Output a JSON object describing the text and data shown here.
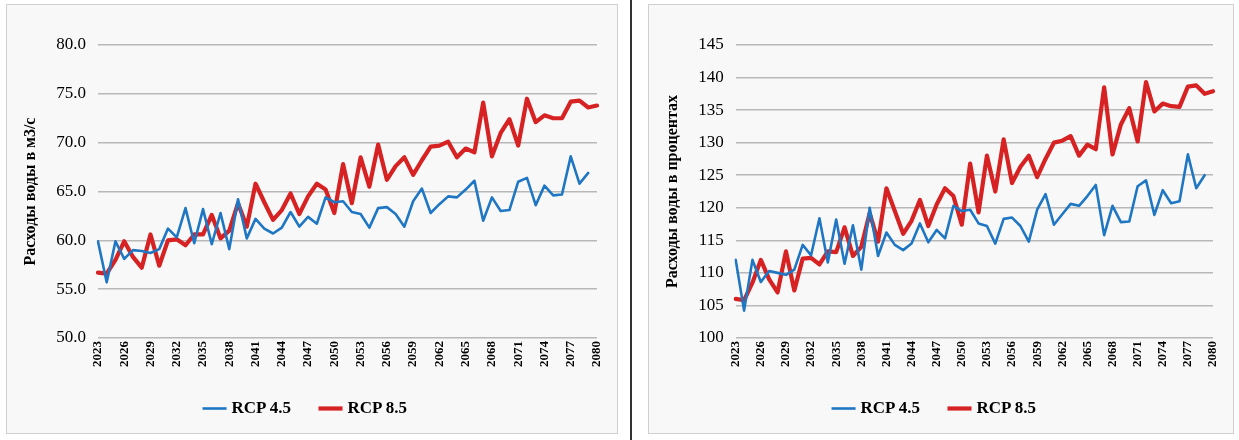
{
  "chart_data": [
    {
      "type": "line",
      "ylabel": "Расходы воды в м3/с",
      "categories": [
        "2023",
        null,
        null,
        "2026",
        null,
        null,
        "2029",
        null,
        null,
        "2032",
        null,
        null,
        "2035",
        null,
        null,
        "2038",
        null,
        null,
        "2041",
        null,
        null,
        "2044",
        null,
        null,
        "2047",
        null,
        null,
        "2050",
        null,
        null,
        "2053",
        null,
        null,
        "2056",
        null,
        null,
        "2059",
        null,
        null,
        "2062",
        null,
        null,
        "2065",
        null,
        null,
        "2068",
        null,
        null,
        "2071",
        null,
        null,
        "2074",
        null,
        null,
        "2077",
        null,
        null,
        "2080"
      ],
      "ylim": [
        50,
        80
      ],
      "yticks": [
        {
          "value": 50,
          "label": "50.0"
        },
        {
          "value": 55,
          "label": "55.0"
        },
        {
          "value": 60,
          "label": "60.0"
        },
        {
          "value": 65,
          "label": "65.0"
        },
        {
          "value": 70,
          "label": "70.0"
        },
        {
          "value": 75,
          "label": "75.0"
        },
        {
          "value": 80,
          "label": "80.0"
        }
      ],
      "grid": "y",
      "legend": "bottom",
      "marker": "none",
      "line_style": "solid",
      "series": [
        {
          "name": "RCP 4.5",
          "color": "#1f77c4",
          "values": [
            59.9,
            55.7,
            59.9,
            58.1,
            59.0,
            58.9,
            58.7,
            59.1,
            61.2,
            60.3,
            63.3,
            59.7,
            63.2,
            59.6,
            62.8,
            59.1,
            64.2,
            60.2,
            62.2,
            61.2,
            60.7,
            61.3,
            62.9,
            61.4,
            62.4,
            61.7,
            64.4,
            63.9,
            64.0,
            62.9,
            62.7,
            61.3,
            63.3,
            63.4,
            62.7,
            61.4,
            64.0,
            65.3,
            62.8,
            63.7,
            64.5,
            64.4,
            65.2,
            66.1,
            62.0,
            64.4,
            63.0,
            63.1,
            66.0,
            66.4,
            63.6,
            65.6,
            64.6,
            64.7,
            68.6,
            65.8,
            66.9,
            null
          ]
        },
        {
          "name": "RCP 8.5",
          "color": "#d62222",
          "values": [
            56.7,
            56.6,
            58.0,
            59.9,
            58.3,
            57.2,
            60.6,
            57.4,
            60.0,
            60.1,
            59.5,
            60.6,
            60.6,
            62.6,
            60.2,
            61.0,
            63.8,
            61.4,
            65.8,
            63.9,
            62.1,
            63.1,
            64.8,
            62.7,
            64.5,
            65.8,
            65.2,
            62.8,
            67.8,
            63.8,
            68.5,
            65.5,
            69.8,
            66.2,
            67.6,
            68.5,
            66.7,
            68.2,
            69.6,
            69.7,
            70.1,
            68.5,
            69.4,
            69.0,
            74.1,
            68.6,
            71.0,
            72.4,
            69.7,
            74.5,
            72.1,
            72.8,
            72.5,
            72.5,
            74.2,
            74.3,
            73.6,
            73.8
          ]
        }
      ]
    },
    {
      "type": "line",
      "ylabel": "Расходы воды в процентах",
      "categories": [
        "2023",
        null,
        null,
        "2026",
        null,
        null,
        "2029",
        null,
        null,
        "2032",
        null,
        null,
        "2035",
        null,
        null,
        "2038",
        null,
        null,
        "2041",
        null,
        null,
        "2044",
        null,
        null,
        "2047",
        null,
        null,
        "2050",
        null,
        null,
        "2053",
        null,
        null,
        "2056",
        null,
        null,
        "2059",
        null,
        null,
        "2062",
        null,
        null,
        "2065",
        null,
        null,
        "2068",
        null,
        null,
        "2071",
        null,
        null,
        "2074",
        null,
        null,
        "2077",
        null,
        null,
        "2080"
      ],
      "ylim": [
        100,
        145
      ],
      "yticks": [
        100,
        105,
        110,
        115,
        120,
        125,
        130,
        135,
        140,
        145
      ],
      "grid": "y",
      "legend": "bottom",
      "marker": "none",
      "line_style": "solid",
      "series": [
        {
          "name": "RCP 4.5",
          "color": "#1f77c4",
          "values": [
            112,
            104.2,
            112,
            108.6,
            110.3,
            110,
            109.7,
            110.5,
            114.3,
            112.7,
            118.4,
            111.6,
            118.2,
            111.4,
            117.3,
            110.5,
            120,
            112.6,
            116.2,
            114.3,
            113.5,
            114.5,
            117.6,
            114.7,
            116.6,
            115.3,
            120.3,
            119.5,
            119.7,
            117.6,
            117.2,
            114.5,
            118.3,
            118.5,
            117.2,
            114.8,
            119.7,
            122.1,
            117.4,
            119,
            120.6,
            120.3,
            121.8,
            123.5,
            115.8,
            120.3,
            117.8,
            117.9,
            123.3,
            124.2,
            118.9,
            122.7,
            120.7,
            121,
            128.2,
            123,
            125,
            null
          ]
        },
        {
          "name": "RCP 8.5",
          "color": "#d62222",
          "values": [
            106,
            105.8,
            108.5,
            112,
            109,
            107,
            113.3,
            107.3,
            112.2,
            112.3,
            111.3,
            113.3,
            113.2,
            117,
            112.6,
            114,
            119.2,
            114.8,
            123,
            119.5,
            116,
            118,
            121.2,
            117.2,
            120.5,
            123,
            121.8,
            117.4,
            126.8,
            119.3,
            128,
            122.5,
            130.5,
            123.8,
            126.3,
            128,
            124.7,
            127.5,
            130,
            130.3,
            131,
            128,
            129.7,
            129,
            138.5,
            128.2,
            132.8,
            135.3,
            130.2,
            139.3,
            134.8,
            136,
            135.6,
            135.5,
            138.6,
            138.8,
            137.5,
            137.9
          ]
        }
      ]
    }
  ]
}
